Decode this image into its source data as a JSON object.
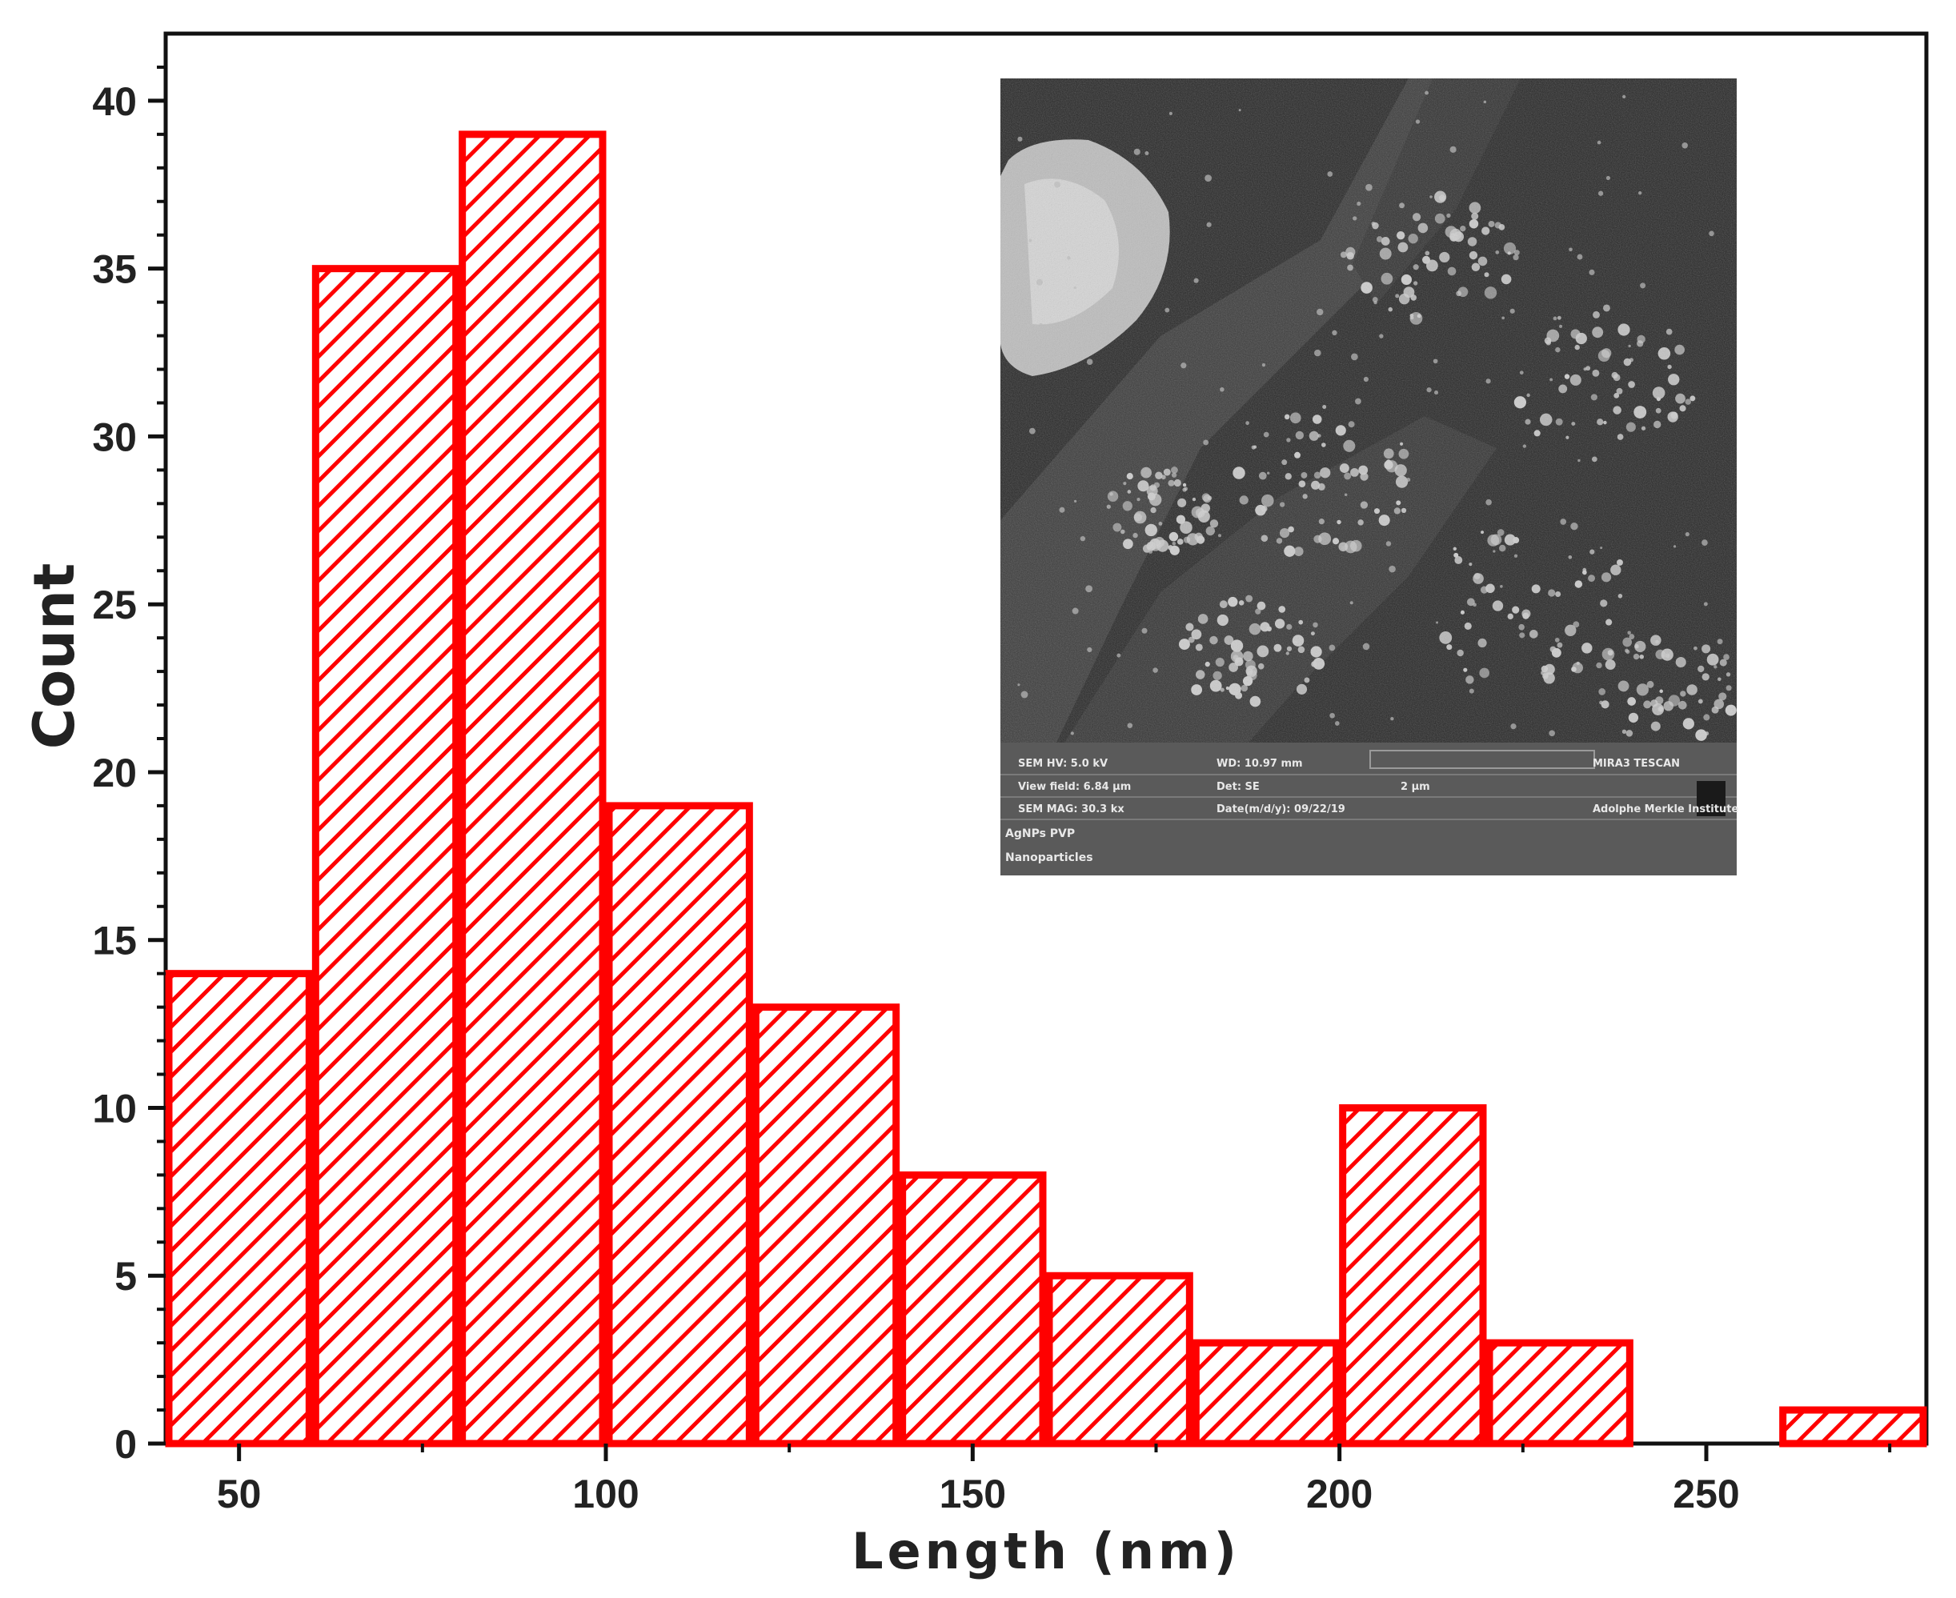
{
  "chart_data": {
    "type": "bar",
    "title": "",
    "xlabel": "Length (nm)",
    "ylabel": "Count",
    "xlim": [
      40,
      280
    ],
    "ylim": [
      0,
      42
    ],
    "x_ticks": [
      50,
      100,
      150,
      200,
      250
    ],
    "y_ticks": [
      0,
      5,
      10,
      15,
      20,
      25,
      30,
      35,
      40
    ],
    "bins": [
      {
        "start": 40,
        "end": 60,
        "count": 14
      },
      {
        "start": 60,
        "end": 80,
        "count": 35
      },
      {
        "start": 80,
        "end": 100,
        "count": 39
      },
      {
        "start": 100,
        "end": 120,
        "count": 19
      },
      {
        "start": 120,
        "end": 140,
        "count": 13
      },
      {
        "start": 140,
        "end": 160,
        "count": 8
      },
      {
        "start": 160,
        "end": 180,
        "count": 5
      },
      {
        "start": 180,
        "end": 200,
        "count": 3
      },
      {
        "start": 200,
        "end": 220,
        "count": 10
      },
      {
        "start": 220,
        "end": 240,
        "count": 3
      },
      {
        "start": 240,
        "end": 260,
        "count": 0
      },
      {
        "start": 260,
        "end": 280,
        "count": 1
      }
    ],
    "bar_color": "#ff0000",
    "bar_fill": "diagonal-hatch",
    "grid": false,
    "legend": "none"
  },
  "inset": {
    "description_label": "SEM micrograph",
    "info_rows": [
      [
        "SEM HV: 5.0 kV",
        "WD: 10.97 mm",
        "",
        "MIRA3 TESCAN"
      ],
      [
        "View field: 6.84 μm",
        "Det: SE",
        "2 μm",
        ""
      ],
      [
        "SEM MAG: 30.3 kx",
        "Date(m/d/y): 09/22/19",
        "",
        "Adolphe Merkle Institute"
      ]
    ],
    "caption_lines": [
      "AgNPs PVP",
      "Nanoparticles"
    ]
  }
}
